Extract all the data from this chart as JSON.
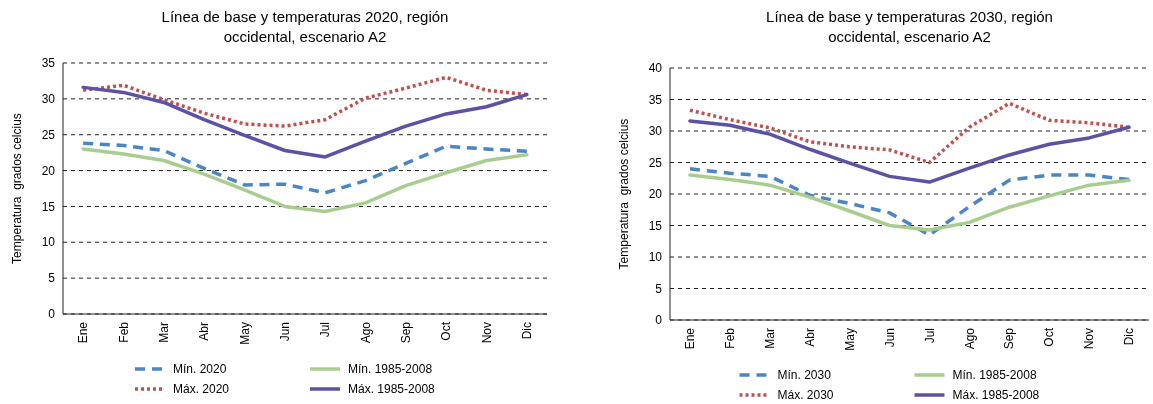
{
  "chart_data": [
    {
      "type": "line",
      "title": "Línea de base y temperaturas 2020, región occidental, escenario A2",
      "ylabel": "Temperatura  grados celcius",
      "categories": [
        "Ene",
        "Feb",
        "Mar",
        "Abr",
        "May",
        "Jun",
        "Jul",
        "Ago",
        "Sep",
        "Oct",
        "Nov",
        "Dic"
      ],
      "ylim": [
        0,
        35
      ],
      "yticks": [
        0,
        5,
        10,
        15,
        20,
        25,
        30,
        35
      ],
      "grid": "y",
      "legend": "bottom",
      "marker": "none",
      "series": [
        {
          "name": "Mín. 2020",
          "color": "#4a86c6",
          "line_style": "dashed",
          "values": [
            23.8,
            23.5,
            22.8,
            20.3,
            18.0,
            18.1,
            16.9,
            18.6,
            21.0,
            23.4,
            23.0,
            22.7
          ]
        },
        {
          "name": "Máx. 2020",
          "color": "#c0504d",
          "line_style": "dotted",
          "values": [
            31.2,
            31.9,
            29.9,
            28.0,
            26.5,
            26.2,
            27.1,
            30.1,
            31.5,
            33.0,
            31.2,
            30.6
          ]
        },
        {
          "name": "Mín. 1985-2008",
          "color": "#a9cd8f",
          "line_style": "solid",
          "values": [
            23.0,
            22.3,
            21.4,
            19.5,
            17.3,
            15.0,
            14.3,
            15.5,
            17.9,
            19.7,
            21.4,
            22.2
          ]
        },
        {
          "name": "Máx. 1985-2008",
          "color": "#5b52a3",
          "line_style": "solid",
          "values": [
            31.6,
            30.9,
            29.5,
            27.1,
            24.9,
            22.8,
            21.9,
            24.1,
            26.2,
            27.9,
            28.9,
            30.6
          ]
        }
      ]
    },
    {
      "type": "line",
      "title": "Línea de base y temperaturas 2030, región occidental, escenario A2",
      "ylabel": "Temperatura  grados celcius",
      "categories": [
        "Ene",
        "Feb",
        "Mar",
        "Abr",
        "May",
        "Jun",
        "Jul",
        "Ago",
        "Sep",
        "Oct",
        "Nov",
        "Dic"
      ],
      "ylim": [
        0,
        40
      ],
      "yticks": [
        0,
        5,
        10,
        15,
        20,
        25,
        30,
        35,
        40
      ],
      "grid": "y",
      "legend": "bottom",
      "marker": "none",
      "series": [
        {
          "name": "Mín. 2030",
          "color": "#4a86c6",
          "line_style": "dashed",
          "values": [
            24.0,
            23.3,
            22.8,
            19.8,
            18.5,
            17.0,
            13.5,
            18.0,
            22.2,
            23.0,
            23.0,
            22.3
          ]
        },
        {
          "name": "Máx. 2030",
          "color": "#c0504d",
          "line_style": "dotted",
          "values": [
            33.3,
            31.8,
            30.5,
            28.3,
            27.5,
            27.0,
            25.0,
            30.6,
            34.4,
            31.7,
            31.3,
            30.6
          ]
        },
        {
          "name": "Mín. 1985-2008",
          "color": "#a9cd8f",
          "line_style": "solid",
          "values": [
            23.0,
            22.3,
            21.4,
            19.5,
            17.3,
            15.0,
            14.3,
            15.5,
            17.9,
            19.7,
            21.4,
            22.2
          ]
        },
        {
          "name": "Máx. 1985-2008",
          "color": "#5b52a3",
          "line_style": "solid",
          "values": [
            31.6,
            30.9,
            29.5,
            27.1,
            24.9,
            22.8,
            21.9,
            24.1,
            26.2,
            27.9,
            28.9,
            30.6
          ]
        }
      ]
    }
  ]
}
